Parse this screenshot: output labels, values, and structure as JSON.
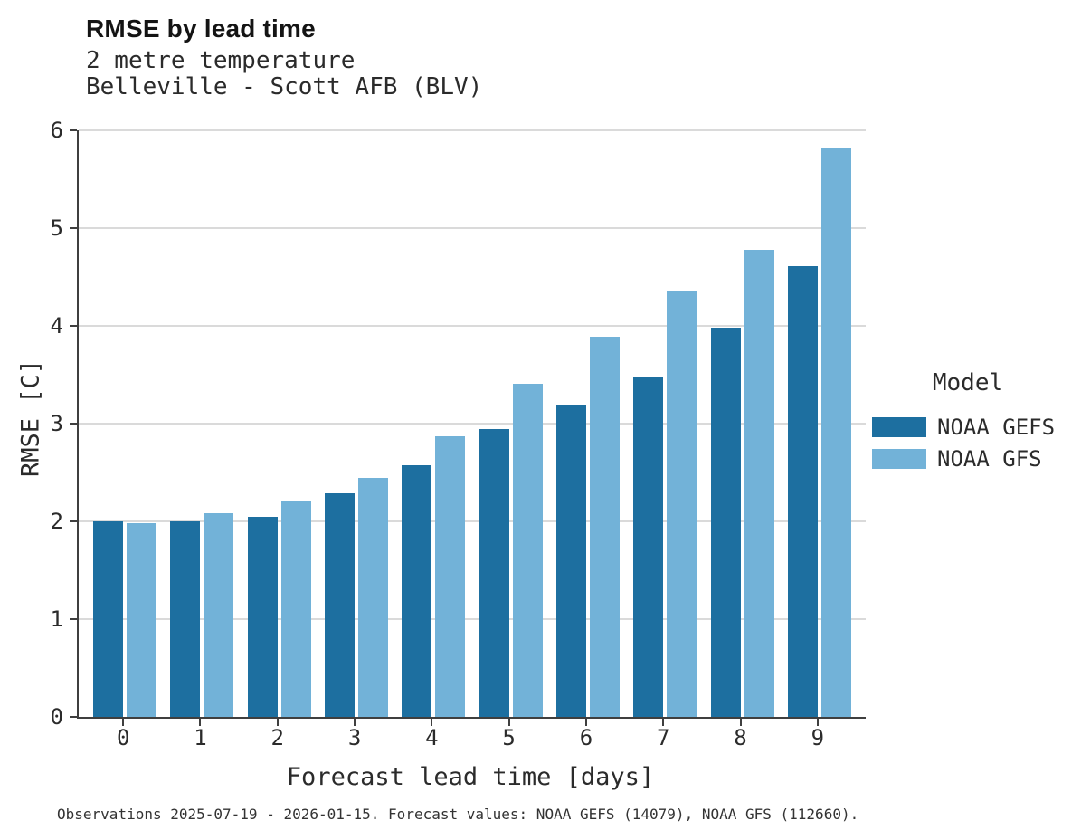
{
  "header": {
    "title": "RMSE by lead time",
    "subtitle_line1": "2 metre temperature",
    "subtitle_line2": "Belleville - Scott AFB (BLV)"
  },
  "axes": {
    "x_title": "Forecast lead time [days]",
    "y_title": "RMSE [C]"
  },
  "legend": {
    "title": "Model",
    "entries": [
      {
        "label": "NOAA GEFS",
        "color": "#1d6fa0"
      },
      {
        "label": "NOAA GFS",
        "color": "#72b2d8"
      }
    ]
  },
  "footer": {
    "caption": "Observations 2025-07-19 - 2026-01-15. Forecast values: NOAA GEFS (14079), NOAA GFS (112660)."
  },
  "colors": {
    "gefs_bar": "#1d6fa0",
    "gfs_bar": "#72b2d8",
    "gridline": "#dadada",
    "axis_spine": "#3f3f3f",
    "text": "#2b2b2b"
  },
  "chart_data": {
    "type": "bar",
    "title": "RMSE by lead time",
    "subtitle": "2 metre temperature — Belleville - Scott AFB (BLV)",
    "xlabel": "Forecast lead time [days]",
    "ylabel": "RMSE [C]",
    "categories": [
      "0",
      "1",
      "2",
      "3",
      "4",
      "5",
      "6",
      "7",
      "8",
      "9"
    ],
    "series": [
      {
        "name": "NOAA GEFS",
        "color": "#1d6fa0",
        "values": [
          2.0,
          2.0,
          2.05,
          2.29,
          2.57,
          2.94,
          3.19,
          3.48,
          3.98,
          4.61
        ]
      },
      {
        "name": "NOAA GFS",
        "color": "#72b2d8",
        "values": [
          1.98,
          2.08,
          2.2,
          2.44,
          2.87,
          3.41,
          3.89,
          4.36,
          4.78,
          5.82
        ]
      }
    ],
    "ylim": [
      0,
      6
    ],
    "yticks": [
      0,
      1,
      2,
      3,
      4,
      5,
      6
    ],
    "grid": true,
    "legend_title": "Model",
    "legend_position": "right",
    "caption": "Observations 2025-07-19 - 2026-01-15. Forecast values: NOAA GEFS (14079), NOAA GFS (112660)."
  }
}
